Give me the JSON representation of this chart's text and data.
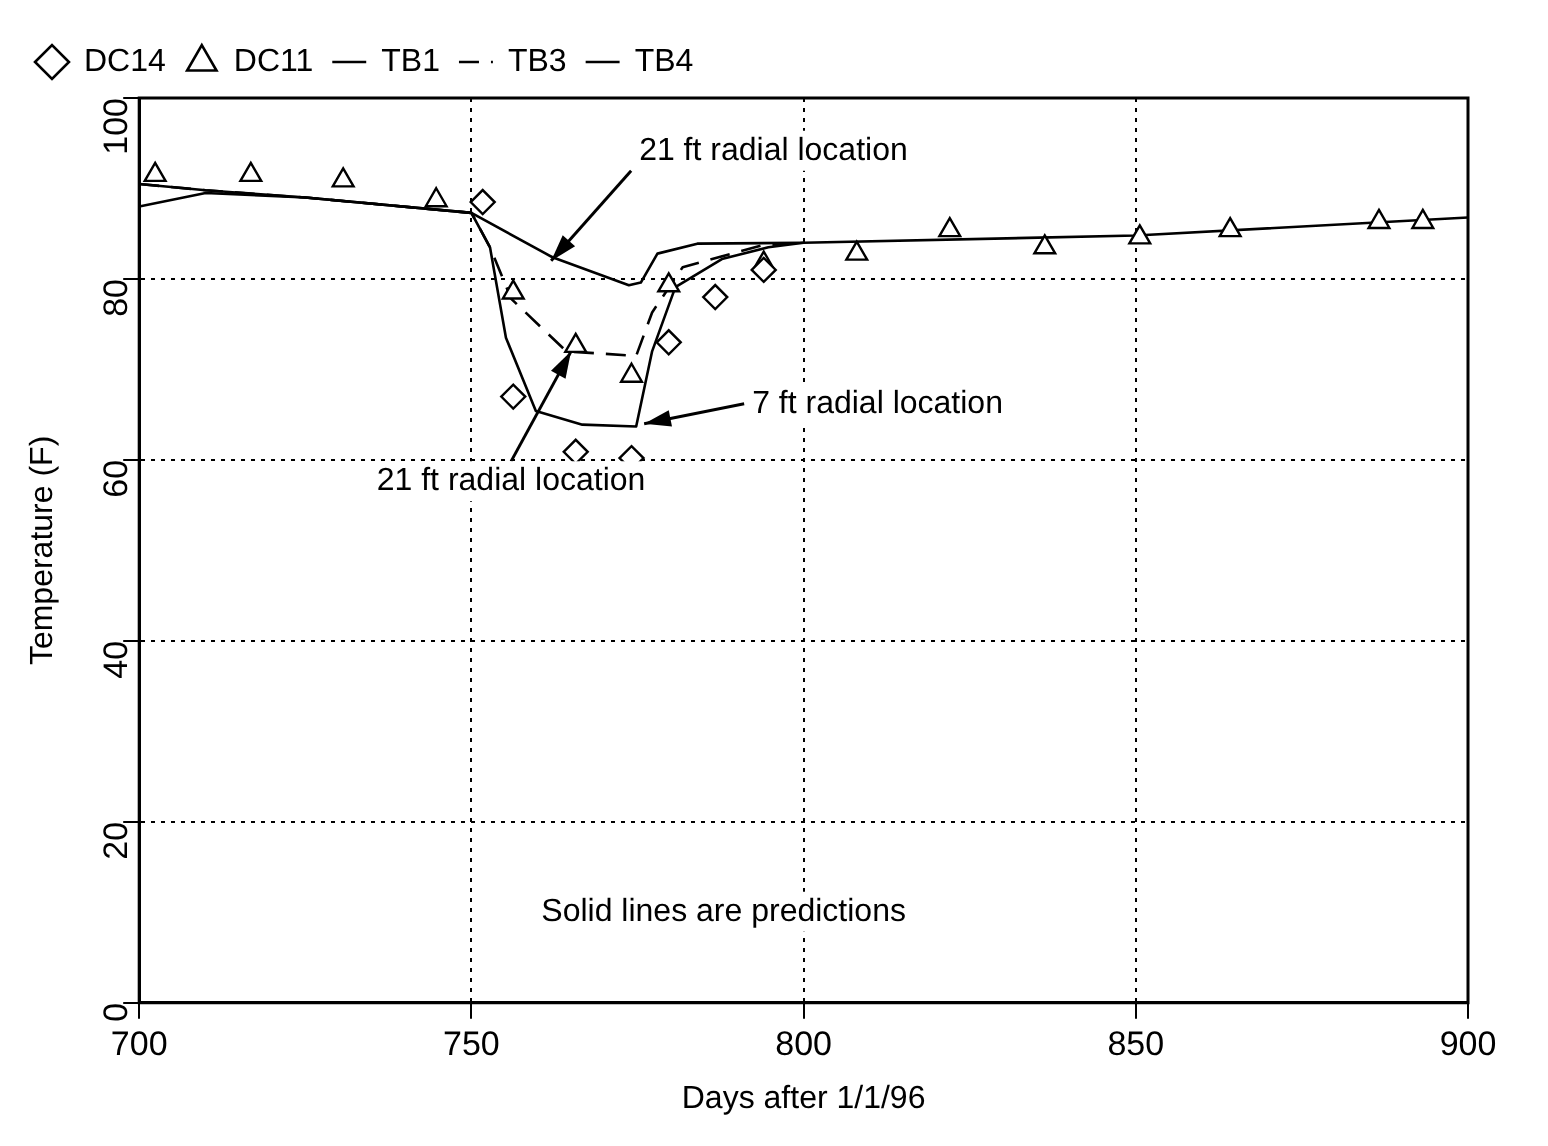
{
  "chart_data": {
    "type": "line",
    "xlabel": "Days after 1/1/96",
    "ylabel": "Temperature (F)",
    "xlim": [
      700,
      900
    ],
    "xticks": [
      700,
      750,
      800,
      850,
      900
    ],
    "ylim": [
      0,
      100
    ],
    "yticks": [
      0,
      20,
      40,
      60,
      80,
      100
    ],
    "grid": true,
    "legend": "top left",
    "series": [
      {
        "name": "TB4",
        "color": "#000000",
        "line_style": "solid",
        "marker": "none",
        "x": [
          700,
          710,
          725,
          750,
          762.2,
          773.7,
          775.5,
          778,
          784,
          800,
          850,
          900
        ],
        "values": [
          88,
          89.5,
          89,
          87.3,
          82.4,
          79.3,
          79.6,
          82.8,
          83.9,
          84,
          84.8,
          86.8
        ]
      },
      {
        "name": "TB3",
        "color": "#000000",
        "line_style": "dashed",
        "marker": "none",
        "x": [
          700,
          710,
          725,
          750,
          752.8,
          756,
          764.3,
          774.8,
          777.2,
          781.8,
          793.6,
          800
        ],
        "values": [
          90.5,
          89.8,
          89,
          87.3,
          83.5,
          77.8,
          72,
          71.5,
          76.3,
          81.3,
          83.7,
          84
        ]
      },
      {
        "name": "TB1",
        "color": "#000000",
        "line_style": "solid",
        "marker": "none",
        "x": [
          700,
          710,
          725,
          750,
          752.8,
          755.2,
          759.7,
          766.7,
          774.8,
          777.2,
          780.7,
          787.7,
          794.7,
          800
        ],
        "values": [
          90.5,
          89.8,
          89,
          87.3,
          83.5,
          73.5,
          65.4,
          63.9,
          63.7,
          72,
          79.1,
          82.2,
          83.5,
          84
        ]
      },
      {
        "name": "DC11",
        "type": "scatter",
        "color": "#000000",
        "marker": "triangle",
        "x": [
          702.4,
          716.8,
          730.7,
          744.7,
          756.3,
          765.7,
          774.1,
          779.7,
          794,
          808,
          822,
          836.3,
          850.6,
          864.2,
          886.6,
          893.2
        ],
        "values": [
          91.5,
          91.5,
          90.9,
          88.7,
          78.5,
          72.6,
          69.3,
          79.3,
          81.7,
          82.8,
          85.4,
          83.5,
          84.6,
          85.4,
          86.3,
          86.3
        ]
      },
      {
        "name": "DC14",
        "type": "scatter",
        "color": "#000000",
        "marker": "diamond",
        "x": [
          751.7,
          756.3,
          765.7,
          774.1,
          779.7,
          786.7,
          794
        ],
        "values": [
          88.5,
          67,
          60.9,
          60.2,
          73,
          78,
          81
        ]
      }
    ],
    "annotations": [
      {
        "text": "21 ft radial location",
        "x": 762,
        "y": 82
      },
      {
        "text": "21 ft radial location",
        "x": 765,
        "y": 72
      },
      {
        "text": "7 ft radial location",
        "x": 776,
        "y": 64
      },
      "Solid lines are predictions"
    ]
  }
}
